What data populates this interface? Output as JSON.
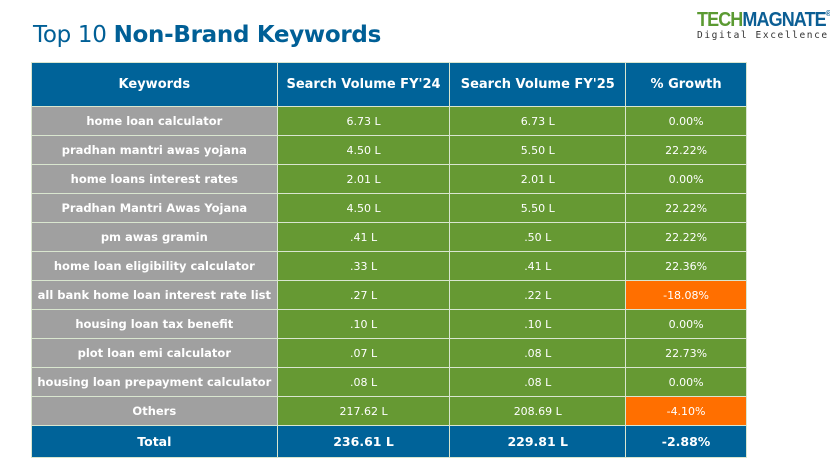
{
  "title": {
    "light": "Top 10 ",
    "bold": "Non-Brand Keywords"
  },
  "logo": {
    "part1": "TECH",
    "part2": "MAGNATE",
    "reg": "®",
    "tagline": "Digital Excellence"
  },
  "colors": {
    "header": "#006399",
    "keyword_cell": "#a0a0a0",
    "positive": "#669933",
    "negative": "#ff6f00"
  },
  "table": {
    "headers": [
      "Keywords",
      "Search Volume FY'24",
      "Search Volume FY'25",
      "% Growth"
    ],
    "rows": [
      {
        "keyword": "home loan calculator",
        "fy24": "6.73 L",
        "fy25": "6.73 L",
        "growth": "0.00%",
        "neg": false
      },
      {
        "keyword": "pradhan mantri awas yojana",
        "fy24": "4.50 L",
        "fy25": "5.50 L",
        "growth": "22.22%",
        "neg": false
      },
      {
        "keyword": "home loans interest rates",
        "fy24": "2.01 L",
        "fy25": "2.01 L",
        "growth": "0.00%",
        "neg": false
      },
      {
        "keyword": "Pradhan Mantri Awas Yojana",
        "fy24": "4.50 L",
        "fy25": "5.50 L",
        "growth": "22.22%",
        "neg": false
      },
      {
        "keyword": "pm awas gramin",
        "fy24": ".41 L",
        "fy25": ".50 L",
        "growth": "22.22%",
        "neg": false
      },
      {
        "keyword": "home loan eligibility calculator",
        "fy24": ".33 L",
        "fy25": ".41 L",
        "growth": "22.36%",
        "neg": false
      },
      {
        "keyword": "all bank home loan interest rate list",
        "fy24": ".27 L",
        "fy25": ".22 L",
        "growth": "-18.08%",
        "neg": true
      },
      {
        "keyword": "housing loan tax benefit",
        "fy24": ".10 L",
        "fy25": ".10 L",
        "growth": "0.00%",
        "neg": false
      },
      {
        "keyword": "plot loan emi calculator",
        "fy24": ".07 L",
        "fy25": ".08 L",
        "growth": "22.73%",
        "neg": false
      },
      {
        "keyword": "housing loan prepayment calculator",
        "fy24": ".08 L",
        "fy25": ".08 L",
        "growth": "0.00%",
        "neg": false
      },
      {
        "keyword": "Others",
        "fy24": "217.62 L",
        "fy25": "208.69 L",
        "growth": "-4.10%",
        "neg": true
      }
    ],
    "total": {
      "label": "Total",
      "fy24": "236.61 L",
      "fy25": "229.81 L",
      "growth": "-2.88%"
    }
  }
}
